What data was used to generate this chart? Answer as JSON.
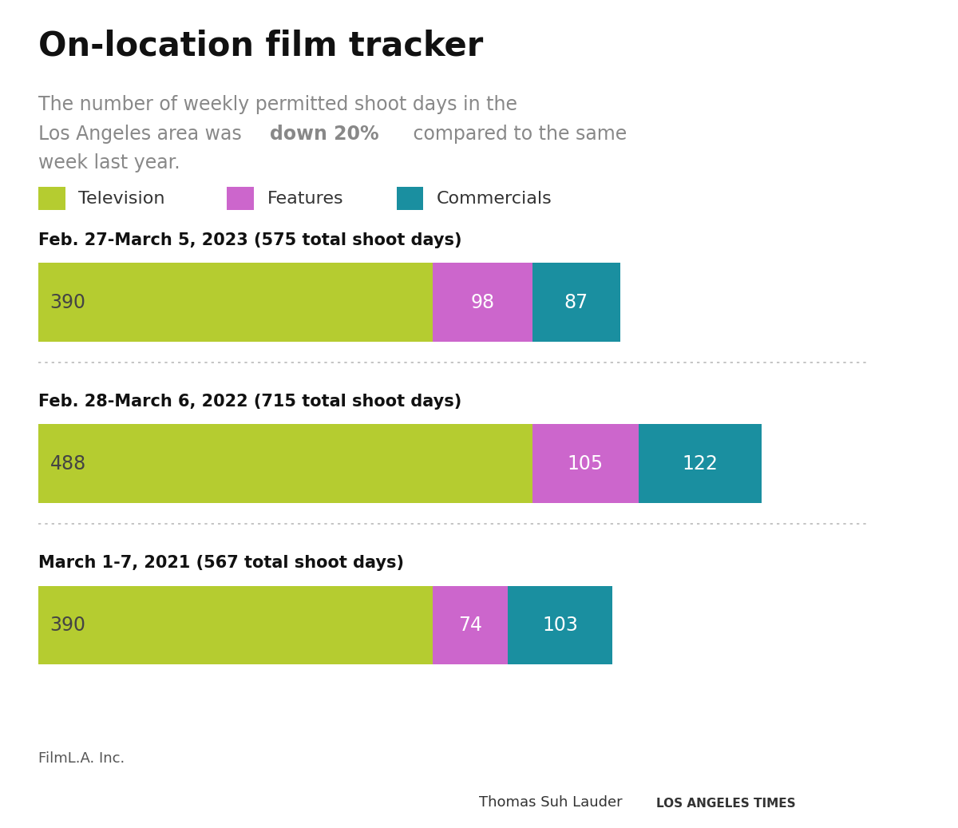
{
  "title": "On-location film tracker",
  "legend_items": [
    "Television",
    "Features",
    "Commercials"
  ],
  "legend_colors": [
    "#b5cc30",
    "#cc66cc",
    "#1a8fa0"
  ],
  "rows": [
    {
      "label": "Feb. 27-March 5, 2023 (575 total shoot days)",
      "television": 390,
      "features": 98,
      "commercials": 87
    },
    {
      "label": "Feb. 28-March 6, 2022 (715 total shoot days)",
      "television": 488,
      "features": 105,
      "commercials": 122
    },
    {
      "label": "March 1-7, 2021 (567 total shoot days)",
      "television": 390,
      "features": 74,
      "commercials": 103
    }
  ],
  "color_television": "#b5cc30",
  "color_features": "#cc66cc",
  "color_commercials": "#1a8fa0",
  "bar_height": 0.055,
  "max_value": 800,
  "source_text": "FilmL.A. Inc.",
  "credit_name": "Thomas Suh Lauder",
  "credit_outlet": "LOS ANGELES TIMES",
  "background_color": "#ffffff"
}
